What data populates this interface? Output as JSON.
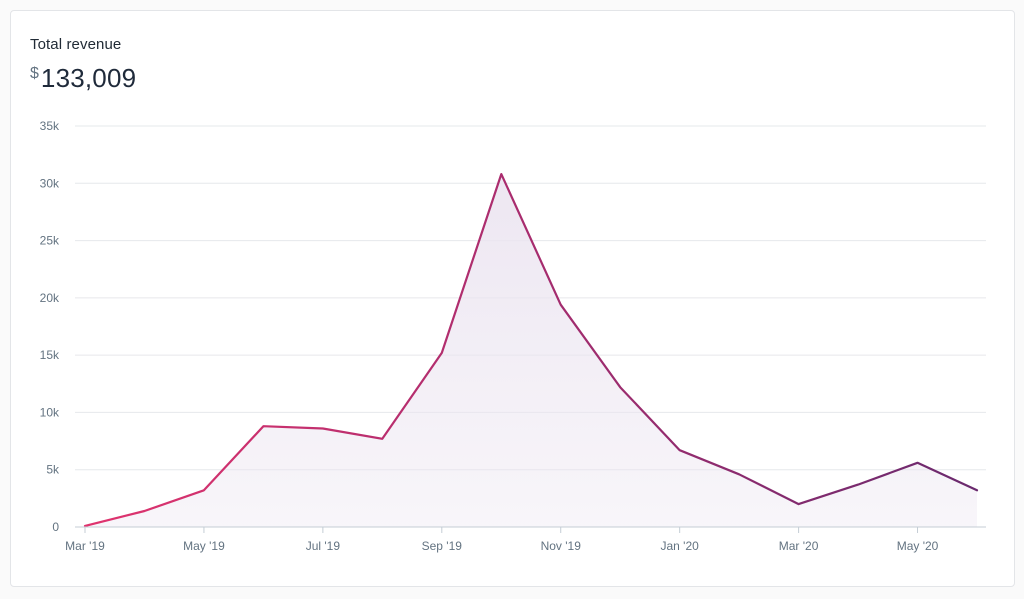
{
  "header": {
    "title": "Total revenue",
    "currency_symbol": "$",
    "total_value": "133,009"
  },
  "colors": {
    "line_start": "#e0336e",
    "line_mid": "#a72c6e",
    "line_end": "#6a2a6e",
    "area_fill": "#ebe4f0",
    "grid": "#e6e8eb",
    "axis": "#c4cdd5"
  },
  "chart_data": {
    "type": "area",
    "title": "Total revenue",
    "xlabel": "",
    "ylabel": "",
    "x": [
      "Mar '19",
      "Apr '19",
      "May '19",
      "Jun '19",
      "Jul '19",
      "Aug '19",
      "Sep '19",
      "Oct '19",
      "Nov '19",
      "Dec '19",
      "Jan '20",
      "Feb '20",
      "Mar '20",
      "Apr '20",
      "May '20",
      "Jun '20"
    ],
    "series": [
      {
        "values": [
          100,
          1400,
          3200,
          8800,
          8600,
          7700,
          15200,
          30800,
          19400,
          12200,
          6700,
          4600,
          2000,
          3700,
          5600,
          3200
        ]
      }
    ],
    "x_tick_labels": [
      "Mar '19",
      "May '19",
      "Jul '19",
      "Sep '19",
      "Nov '19",
      "Jan '20",
      "Mar '20",
      "May '20"
    ],
    "x_tick_indices": [
      0,
      2,
      4,
      6,
      8,
      10,
      12,
      14
    ],
    "y_ticks": [
      0,
      5000,
      10000,
      15000,
      20000,
      25000,
      30000,
      35000
    ],
    "y_tick_labels": [
      "0",
      "5k",
      "10k",
      "15k",
      "20k",
      "25k",
      "30k",
      "35k"
    ],
    "ylim": [
      0,
      35000
    ],
    "grid": true,
    "legend": "none"
  }
}
